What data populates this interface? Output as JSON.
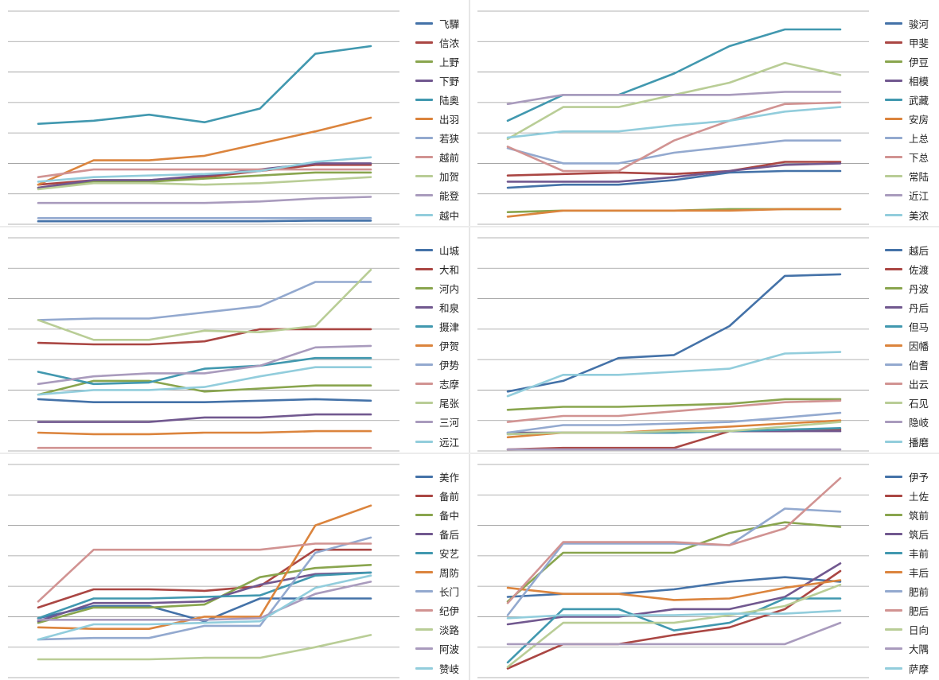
{
  "chart_data": [
    {
      "type": "line",
      "x": [
        1,
        2,
        3,
        4,
        5,
        6,
        7
      ],
      "ylim": [
        0,
        7
      ],
      "grid": true,
      "legend_position": "right",
      "series": [
        {
          "name": "飞驒",
          "color": "#4472a8",
          "values": [
            0.1,
            0.1,
            0.1,
            0.1,
            0.1,
            0.12,
            0.12
          ]
        },
        {
          "name": "信浓",
          "color": "#aa4643",
          "values": [
            1.3,
            1.45,
            1.45,
            1.55,
            1.75,
            1.95,
            1.95
          ]
        },
        {
          "name": "上野",
          "color": "#89a54e",
          "values": [
            1.2,
            1.4,
            1.4,
            1.5,
            1.6,
            1.7,
            1.7
          ]
        },
        {
          "name": "下野",
          "color": "#71588f",
          "values": [
            1.2,
            1.45,
            1.45,
            1.6,
            1.8,
            2.0,
            2.0
          ]
        },
        {
          "name": "陆奥",
          "color": "#4198af",
          "values": [
            3.3,
            3.4,
            3.6,
            3.35,
            3.8,
            5.6,
            5.85
          ]
        },
        {
          "name": "出羽",
          "color": "#db843d",
          "values": [
            1.3,
            2.1,
            2.1,
            2.25,
            2.65,
            3.05,
            3.5
          ]
        },
        {
          "name": "若狭",
          "color": "#93a9cf",
          "values": [
            0.2,
            0.2,
            0.2,
            0.2,
            0.2,
            0.2,
            0.2
          ]
        },
        {
          "name": "越前",
          "color": "#d19392",
          "values": [
            1.55,
            1.8,
            1.8,
            1.8,
            1.8,
            1.8,
            1.8
          ]
        },
        {
          "name": "加贺",
          "color": "#b9cd96",
          "values": [
            1.15,
            1.35,
            1.35,
            1.3,
            1.35,
            1.45,
            1.55
          ]
        },
        {
          "name": "能登",
          "color": "#a99bbd",
          "values": [
            0.7,
            0.7,
            0.7,
            0.7,
            0.75,
            0.85,
            0.9
          ]
        },
        {
          "name": "越中",
          "color": "#92cddc",
          "values": [
            1.4,
            1.55,
            1.6,
            1.65,
            1.75,
            2.05,
            2.2
          ]
        }
      ]
    },
    {
      "type": "line",
      "x": [
        1,
        2,
        3,
        4,
        5,
        6,
        7
      ],
      "ylim": [
        0,
        7
      ],
      "grid": true,
      "legend_position": "right",
      "series": [
        {
          "name": "骏河",
          "color": "#4472a8",
          "values": [
            1.2,
            1.3,
            1.3,
            1.45,
            1.7,
            1.75,
            1.75
          ]
        },
        {
          "name": "甲斐",
          "color": "#aa4643",
          "values": [
            1.6,
            1.65,
            1.7,
            1.65,
            1.75,
            2.05,
            2.05
          ]
        },
        {
          "name": "伊豆",
          "color": "#89a54e",
          "values": [
            0.4,
            0.45,
            0.45,
            0.45,
            0.5,
            0.5,
            0.5
          ]
        },
        {
          "name": "相模",
          "color": "#71588f",
          "values": [
            1.4,
            1.4,
            1.4,
            1.55,
            1.75,
            1.95,
            2.0
          ]
        },
        {
          "name": "武藏",
          "color": "#4198af",
          "values": [
            3.4,
            4.25,
            4.25,
            4.95,
            5.85,
            6.4,
            6.4
          ]
        },
        {
          "name": "安房",
          "color": "#db843d",
          "values": [
            0.25,
            0.45,
            0.45,
            0.45,
            0.45,
            0.5,
            0.5
          ]
        },
        {
          "name": "上总",
          "color": "#93a9cf",
          "values": [
            2.5,
            2.0,
            2.0,
            2.35,
            2.55,
            2.75,
            2.75
          ]
        },
        {
          "name": "下总",
          "color": "#d19392",
          "values": [
            2.55,
            1.75,
            1.75,
            2.75,
            3.4,
            3.95,
            4.0
          ]
        },
        {
          "name": "常陆",
          "color": "#b9cd96",
          "values": [
            2.8,
            3.85,
            3.85,
            4.25,
            4.65,
            5.3,
            4.9
          ]
        },
        {
          "name": "近江",
          "color": "#a99bbd",
          "values": [
            3.95,
            4.25,
            4.25,
            4.25,
            4.25,
            4.35,
            4.35
          ]
        },
        {
          "name": "美浓",
          "color": "#92cddc",
          "values": [
            2.85,
            3.05,
            3.05,
            3.25,
            3.4,
            3.7,
            3.85
          ]
        }
      ]
    },
    {
      "type": "line",
      "x": [
        1,
        2,
        3,
        4,
        5,
        6,
        7
      ],
      "ylim": [
        0,
        7
      ],
      "grid": true,
      "legend_position": "right",
      "series": [
        {
          "name": "山城",
          "color": "#4472a8",
          "values": [
            1.7,
            1.6,
            1.6,
            1.6,
            1.65,
            1.7,
            1.65
          ]
        },
        {
          "name": "大和",
          "color": "#aa4643",
          "values": [
            3.55,
            3.5,
            3.5,
            3.6,
            4.0,
            4.0,
            4.0
          ]
        },
        {
          "name": "河内",
          "color": "#89a54e",
          "values": [
            1.85,
            2.3,
            2.3,
            1.95,
            2.05,
            2.15,
            2.15
          ]
        },
        {
          "name": "和泉",
          "color": "#71588f",
          "values": [
            0.95,
            0.95,
            0.95,
            1.1,
            1.1,
            1.2,
            1.2
          ]
        },
        {
          "name": "摄津",
          "color": "#4198af",
          "values": [
            2.6,
            2.2,
            2.25,
            2.7,
            2.8,
            3.05,
            3.05
          ]
        },
        {
          "name": "伊贺",
          "color": "#db843d",
          "values": [
            0.6,
            0.55,
            0.55,
            0.6,
            0.6,
            0.65,
            0.65
          ]
        },
        {
          "name": "伊势",
          "color": "#93a9cf",
          "values": [
            4.3,
            4.35,
            4.35,
            4.55,
            4.75,
            5.55,
            5.55
          ]
        },
        {
          "name": "志摩",
          "color": "#d19392",
          "values": [
            0.1,
            0.1,
            0.1,
            0.1,
            0.1,
            0.1,
            0.1
          ]
        },
        {
          "name": "尾张",
          "color": "#b9cd96",
          "values": [
            4.3,
            3.65,
            3.65,
            3.95,
            3.9,
            4.1,
            5.95
          ]
        },
        {
          "name": "三河",
          "color": "#a99bbd",
          "values": [
            2.2,
            2.45,
            2.55,
            2.55,
            2.8,
            3.4,
            3.45
          ]
        },
        {
          "name": "远江",
          "color": "#92cddc",
          "values": [
            1.85,
            2.0,
            2.0,
            2.1,
            2.45,
            2.75,
            2.75
          ]
        }
      ]
    },
    {
      "type": "line",
      "x": [
        1,
        2,
        3,
        4,
        5,
        6,
        7
      ],
      "ylim": [
        0,
        7
      ],
      "grid": true,
      "legend_position": "right",
      "series": [
        {
          "name": "越后",
          "color": "#4472a8",
          "values": [
            1.95,
            2.3,
            3.05,
            3.15,
            4.1,
            5.75,
            5.8
          ]
        },
        {
          "name": "佐渡",
          "color": "#aa4643",
          "values": [
            0.05,
            0.1,
            0.1,
            0.1,
            0.65,
            0.65,
            0.7
          ]
        },
        {
          "name": "丹波",
          "color": "#89a54e",
          "values": [
            1.35,
            1.45,
            1.45,
            1.5,
            1.55,
            1.7,
            1.7
          ]
        },
        {
          "name": "丹后",
          "color": "#71588f",
          "values": [
            0.6,
            0.6,
            0.6,
            0.6,
            0.65,
            0.65,
            0.65
          ]
        },
        {
          "name": "但马",
          "color": "#4198af",
          "values": [
            0.55,
            0.6,
            0.6,
            0.6,
            0.65,
            0.7,
            0.75
          ]
        },
        {
          "name": "因幡",
          "color": "#db843d",
          "values": [
            0.45,
            0.6,
            0.6,
            0.7,
            0.8,
            0.9,
            1.0
          ]
        },
        {
          "name": "伯耆",
          "color": "#93a9cf",
          "values": [
            0.6,
            0.85,
            0.85,
            0.9,
            0.95,
            1.1,
            1.25
          ]
        },
        {
          "name": "出云",
          "color": "#d19392",
          "values": [
            0.95,
            1.15,
            1.15,
            1.3,
            1.45,
            1.6,
            1.65
          ]
        },
        {
          "name": "石见",
          "color": "#b9cd96",
          "values": [
            0.55,
            0.6,
            0.6,
            0.65,
            0.65,
            0.8,
            0.95
          ]
        },
        {
          "name": "隐岐",
          "color": "#a99bbd",
          "values": [
            0.05,
            0.05,
            0.05,
            0.05,
            0.05,
            0.05,
            0.05
          ]
        },
        {
          "name": "播磨",
          "color": "#92cddc",
          "values": [
            1.8,
            2.5,
            2.5,
            2.6,
            2.7,
            3.2,
            3.25
          ]
        }
      ]
    },
    {
      "type": "line",
      "x": [
        1,
        2,
        3,
        4,
        5,
        6,
        7
      ],
      "ylim": [
        0,
        7
      ],
      "grid": true,
      "legend_position": "right",
      "series": [
        {
          "name": "美作",
          "color": "#4472a8",
          "values": [
            1.95,
            2.35,
            2.35,
            1.85,
            2.6,
            2.6,
            2.6
          ]
        },
        {
          "name": "备前",
          "color": "#aa4643",
          "values": [
            2.3,
            2.9,
            2.9,
            2.85,
            3.0,
            4.2,
            4.2
          ]
        },
        {
          "name": "备中",
          "color": "#89a54e",
          "values": [
            1.8,
            2.3,
            2.3,
            2.4,
            3.3,
            3.6,
            3.7
          ]
        },
        {
          "name": "备后",
          "color": "#71588f",
          "values": [
            1.85,
            2.45,
            2.45,
            2.5,
            3.05,
            3.4,
            3.45
          ]
        },
        {
          "name": "安艺",
          "color": "#4198af",
          "values": [
            1.95,
            2.6,
            2.6,
            2.65,
            2.7,
            3.35,
            3.45
          ]
        },
        {
          "name": "周防",
          "color": "#db843d",
          "values": [
            1.65,
            1.6,
            1.6,
            2.0,
            2.0,
            5.0,
            5.65
          ]
        },
        {
          "name": "长门",
          "color": "#93a9cf",
          "values": [
            1.25,
            1.3,
            1.3,
            1.7,
            1.7,
            4.1,
            4.6
          ]
        },
        {
          "name": "纪伊",
          "color": "#d19392",
          "values": [
            2.5,
            4.2,
            4.2,
            4.2,
            4.2,
            4.4,
            4.4
          ]
        },
        {
          "name": "淡路",
          "color": "#b9cd96",
          "values": [
            0.6,
            0.6,
            0.6,
            0.65,
            0.65,
            1.0,
            1.4
          ]
        },
        {
          "name": "阿波",
          "color": "#a99bbd",
          "values": [
            1.9,
            1.9,
            1.9,
            1.9,
            1.95,
            2.75,
            3.15
          ]
        },
        {
          "name": "赞岐",
          "color": "#92cddc",
          "values": [
            1.25,
            1.75,
            1.75,
            1.8,
            1.85,
            2.95,
            3.35
          ]
        }
      ]
    },
    {
      "type": "line",
      "x": [
        1,
        2,
        3,
        4,
        5,
        6,
        7
      ],
      "ylim": [
        0,
        7
      ],
      "grid": true,
      "legend_position": "right",
      "series": [
        {
          "name": "伊予",
          "color": "#4472a8",
          "values": [
            2.65,
            2.75,
            2.75,
            2.9,
            3.15,
            3.3,
            3.15
          ]
        },
        {
          "name": "土佐",
          "color": "#aa4643",
          "values": [
            0.3,
            1.1,
            1.1,
            1.4,
            1.65,
            2.25,
            3.5
          ]
        },
        {
          "name": "筑前",
          "color": "#89a54e",
          "values": [
            2.5,
            4.1,
            4.1,
            4.1,
            4.75,
            5.1,
            4.95
          ]
        },
        {
          "name": "筑后",
          "color": "#71588f",
          "values": [
            1.75,
            2.0,
            2.0,
            2.25,
            2.25,
            2.65,
            3.75
          ]
        },
        {
          "name": "丰前",
          "color": "#4198af",
          "values": [
            0.5,
            2.25,
            2.25,
            1.55,
            1.8,
            2.6,
            2.6
          ]
        },
        {
          "name": "丰后",
          "color": "#db843d",
          "values": [
            2.95,
            2.75,
            2.75,
            2.55,
            2.6,
            2.95,
            3.2
          ]
        },
        {
          "name": "肥前",
          "color": "#93a9cf",
          "values": [
            2.05,
            4.4,
            4.4,
            4.4,
            4.35,
            5.55,
            5.45
          ]
        },
        {
          "name": "肥后",
          "color": "#d19392",
          "values": [
            2.45,
            4.45,
            4.45,
            4.45,
            4.35,
            4.9,
            6.55
          ]
        },
        {
          "name": "日向",
          "color": "#b9cd96",
          "values": [
            0.35,
            1.8,
            1.8,
            1.8,
            2.05,
            2.35,
            3.05
          ]
        },
        {
          "name": "大隅",
          "color": "#a99bbd",
          "values": [
            1.1,
            1.1,
            1.1,
            1.1,
            1.1,
            1.1,
            1.8
          ]
        },
        {
          "name": "萨摩",
          "color": "#92cddc",
          "values": [
            1.95,
            2.05,
            2.05,
            2.05,
            2.1,
            2.1,
            2.2
          ]
        }
      ]
    }
  ]
}
